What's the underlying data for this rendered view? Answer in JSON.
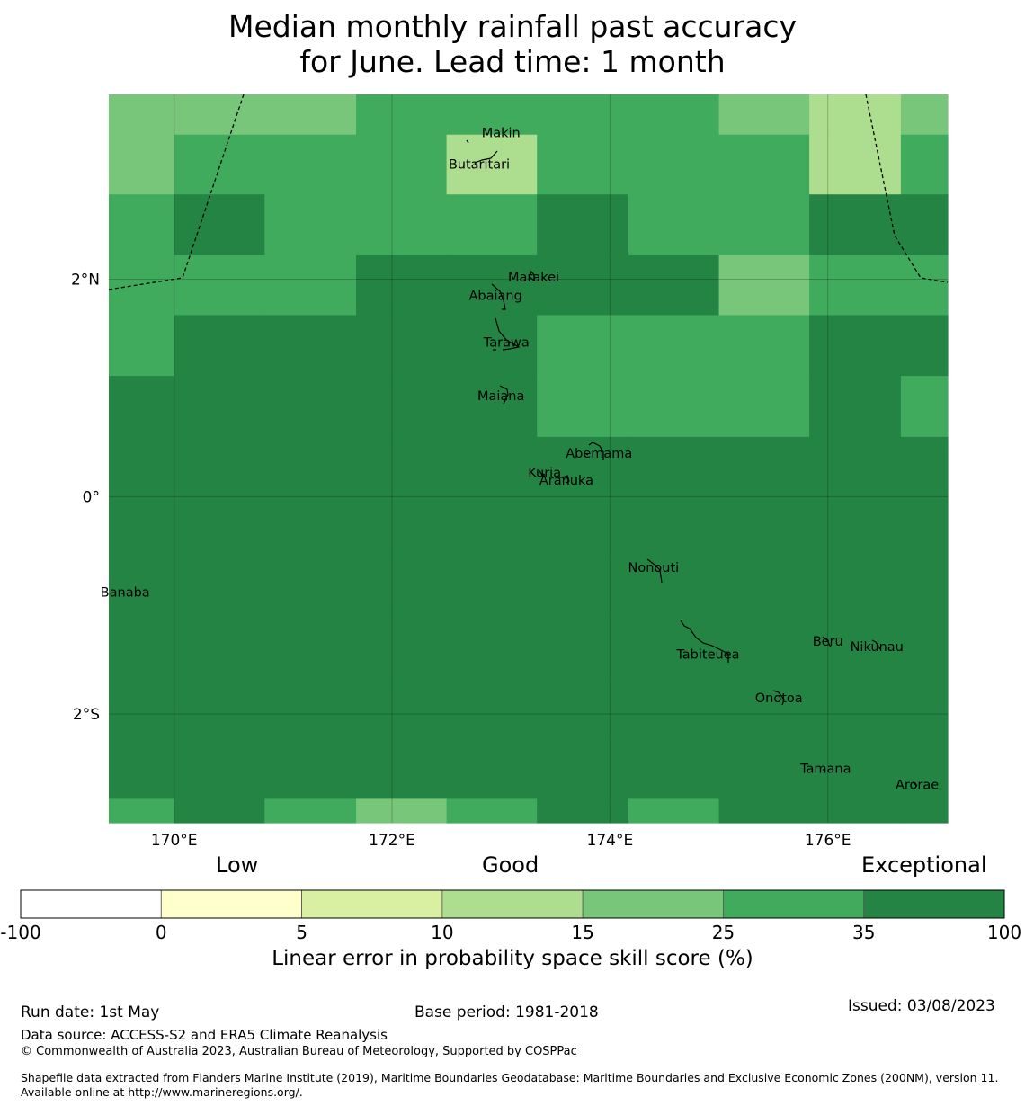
{
  "title": {
    "line1": "Median monthly rainfall past accuracy",
    "line2": "for June. Lead time: 1 month"
  },
  "map": {
    "lon_range": [
      169.4,
      177.1
    ],
    "lat_range": [
      -3.0,
      3.7
    ],
    "lon_ticks": [
      {
        "value": 170,
        "label": "170°E"
      },
      {
        "value": 172,
        "label": "172°E"
      },
      {
        "value": 174,
        "label": "174°E"
      },
      {
        "value": 176,
        "label": "176°E"
      }
    ],
    "lat_ticks": [
      {
        "value": 2,
        "label": "2°N"
      },
      {
        "value": 0,
        "label": "0°"
      },
      {
        "value": -2,
        "label": "2°S"
      }
    ],
    "grid_on": true,
    "grid_lon_edges": [
      169.4,
      170.0,
      170.83,
      171.67,
      172.5,
      173.33,
      174.17,
      175.0,
      175.83,
      176.67,
      177.1
    ],
    "grid_lat_edges": [
      3.7,
      3.33,
      2.78,
      2.22,
      1.67,
      1.11,
      0.55,
      0.0,
      -0.55,
      -1.11,
      -1.67,
      -2.22,
      -2.78,
      -3.0
    ],
    "cell_classes": [
      [
        4,
        3,
        3,
        2,
        2,
        2,
        2,
        4,
        5,
        4
      ],
      [
        4,
        2,
        2,
        2,
        5,
        2,
        2,
        2,
        5,
        2
      ],
      [
        2,
        1,
        2,
        2,
        2,
        1,
        2,
        2,
        1,
        1
      ],
      [
        2,
        2,
        2,
        1,
        1,
        1,
        1,
        4,
        2,
        2
      ],
      [
        2,
        1,
        1,
        1,
        1,
        2,
        2,
        2,
        1,
        1
      ],
      [
        1,
        1,
        1,
        1,
        1,
        2,
        2,
        2,
        1,
        2
      ],
      [
        1,
        1,
        1,
        1,
        1,
        1,
        1,
        1,
        1,
        1
      ],
      [
        1,
        1,
        1,
        1,
        1,
        1,
        1,
        1,
        1,
        1
      ],
      [
        1,
        1,
        1,
        1,
        1,
        1,
        1,
        1,
        1,
        1
      ],
      [
        1,
        1,
        1,
        1,
        1,
        1,
        1,
        1,
        1,
        1
      ],
      [
        1,
        1,
        1,
        1,
        1,
        1,
        1,
        1,
        1,
        1
      ],
      [
        1,
        1,
        1,
        1,
        1,
        1,
        1,
        1,
        1,
        1
      ],
      [
        2,
        1,
        2,
        4,
        2,
        1,
        2,
        1,
        1,
        1
      ]
    ],
    "class_colors": [
      "#ffffff",
      "#238443",
      "#41ab5d",
      "#78c679",
      "#78c679",
      "#addd8e",
      "#d9f0a3",
      "#ffffcc"
    ],
    "islands": [
      {
        "name": "Makin",
        "lon": 173.0,
        "lat": 3.35
      },
      {
        "name": "Butaritari",
        "lon": 172.8,
        "lat": 3.06
      },
      {
        "name": "Marakei",
        "lon": 173.3,
        "lat": 2.02
      },
      {
        "name": "Abaiang",
        "lon": 172.95,
        "lat": 1.85
      },
      {
        "name": "Tarawa",
        "lon": 173.05,
        "lat": 1.42
      },
      {
        "name": "Maiana",
        "lon": 173.0,
        "lat": 0.93
      },
      {
        "name": "Abemama",
        "lon": 173.9,
        "lat": 0.4
      },
      {
        "name": "Kuria",
        "lon": 173.4,
        "lat": 0.22
      },
      {
        "name": "Aranuka",
        "lon": 173.6,
        "lat": 0.15
      },
      {
        "name": "Banaba",
        "lon": 169.55,
        "lat": -0.88
      },
      {
        "name": "Nonouti",
        "lon": 174.4,
        "lat": -0.65
      },
      {
        "name": "Tabiteuea",
        "lon": 174.9,
        "lat": -1.45
      },
      {
        "name": "Beru",
        "lon": 176.0,
        "lat": -1.33
      },
      {
        "name": "Nikunau",
        "lon": 176.45,
        "lat": -1.38
      },
      {
        "name": "Onotoa",
        "lon": 175.55,
        "lat": -1.85
      },
      {
        "name": "Tamana",
        "lon": 175.98,
        "lat": -2.5
      },
      {
        "name": "Arorae",
        "lon": 176.82,
        "lat": -2.65
      }
    ]
  },
  "colorbar": {
    "categories": [
      {
        "label": "Low"
      },
      {
        "label": "Good"
      },
      {
        "label": "Exceptional"
      }
    ],
    "bins": [
      {
        "from": -100,
        "to": 0,
        "color": "#ffffff"
      },
      {
        "from": 0,
        "to": 5,
        "color": "#ffffcc"
      },
      {
        "from": 5,
        "to": 10,
        "color": "#d9f0a3"
      },
      {
        "from": 10,
        "to": 15,
        "color": "#addd8e"
      },
      {
        "from": 15,
        "to": 25,
        "color": "#78c679"
      },
      {
        "from": 25,
        "to": 35,
        "color": "#41ab5d"
      },
      {
        "from": 35,
        "to": 100,
        "color": "#238443"
      }
    ],
    "tick_labels": [
      "-100",
      "0",
      "5",
      "10",
      "15",
      "25",
      "35",
      "100"
    ],
    "label": "Linear error in probability space skill score (%)"
  },
  "footer": {
    "run_date": "Run date: 1st May",
    "base_period": "Base period: 1981-2018",
    "issued": "Issued: 03/08/2023",
    "data_source": "Data source: ACCESS-S2 and ERA5 Climate Reanalysis",
    "copyright": "© Commonwealth of Australia 2023, Australian Bureau of Meteorology, Supported by COSPPac",
    "shapefile": "Shapefile data extracted from Flanders Marine Institute (2019), Maritime Boundaries Geodatabase: Maritime Boundaries and Exclusive Economic Zones (200NM), version 11. Available online at http://www.marineregions.org/."
  }
}
